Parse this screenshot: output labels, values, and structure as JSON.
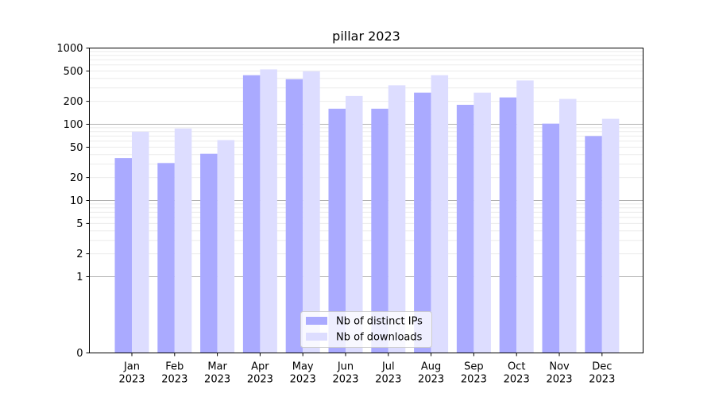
{
  "chart_data": {
    "type": "bar",
    "title": "pillar 2023",
    "xlabel": "",
    "ylabel": "",
    "y_scale": "symlog",
    "ylim": [
      0,
      1000
    ],
    "y_ticks": [
      0,
      1,
      2,
      5,
      10,
      20,
      50,
      100,
      200,
      500,
      1000
    ],
    "y_tick_labels": [
      "0",
      "1",
      "2",
      "5",
      "10",
      "20",
      "50",
      "100",
      "200",
      "500",
      "1000"
    ],
    "grid": "horizontal",
    "legend_position": "bottom-center",
    "categories": [
      "Jan\n2023",
      "Feb\n2023",
      "Mar\n2023",
      "Apr\n2023",
      "May\n2023",
      "Jun\n2023",
      "Jul\n2023",
      "Aug\n2023",
      "Sep\n2023",
      "Oct\n2023",
      "Nov\n2023",
      "Dec\n2023"
    ],
    "category_lines": [
      [
        "Jan",
        "2023"
      ],
      [
        "Feb",
        "2023"
      ],
      [
        "Mar",
        "2023"
      ],
      [
        "Apr",
        "2023"
      ],
      [
        "May",
        "2023"
      ],
      [
        "Jun",
        "2023"
      ],
      [
        "Jul",
        "2023"
      ],
      [
        "Aug",
        "2023"
      ],
      [
        "Sep",
        "2023"
      ],
      [
        "Oct",
        "2023"
      ],
      [
        "Nov",
        "2023"
      ],
      [
        "Dec",
        "2023"
      ]
    ],
    "series": [
      {
        "name": "Nb of distinct IPs",
        "color": "#aaaaff",
        "values": [
          36,
          31,
          41,
          440,
          390,
          160,
          160,
          260,
          180,
          225,
          102,
          70
        ]
      },
      {
        "name": "Nb of downloads",
        "color": "#ddddff",
        "values": [
          80,
          88,
          62,
          525,
          495,
          235,
          325,
          440,
          260,
          375,
          215,
          118
        ]
      }
    ]
  }
}
